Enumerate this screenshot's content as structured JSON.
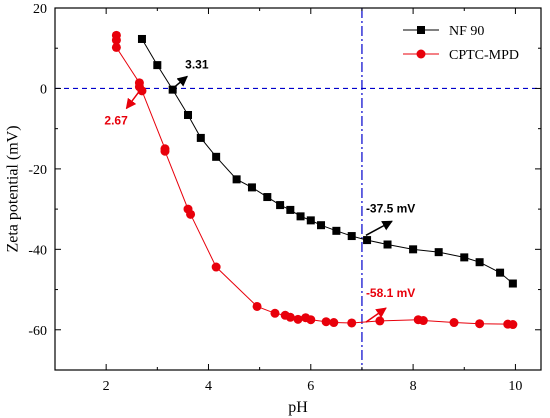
{
  "chart_data": {
    "type": "line",
    "xlabel": "pH",
    "ylabel": "Zeta potential (mV)",
    "xlim": [
      1,
      10.5
    ],
    "ylim": [
      -70,
      20
    ],
    "xticks": [
      2,
      4,
      6,
      8,
      10
    ],
    "yticks": [
      20,
      0,
      -20,
      -40,
      -60
    ],
    "grid": false,
    "legend_position": "top-right",
    "reference_lines": [
      {
        "axis": "y",
        "value": 0,
        "color": "#0000cc",
        "style": "dashed"
      },
      {
        "axis": "x",
        "value": 7,
        "color": "#0000cc",
        "style": "dash-dot"
      }
    ],
    "series": [
      {
        "name": "NF 90",
        "color": "#000000",
        "marker": "square",
        "x": [
          2.7,
          3.0,
          3.3,
          3.6,
          3.85,
          4.15,
          4.55,
          4.85,
          5.15,
          5.4,
          5.6,
          5.8,
          6.0,
          6.2,
          6.5,
          6.8,
          7.1,
          7.5,
          8.0,
          8.5,
          9.0,
          9.3,
          9.7,
          9.95
        ],
        "y": [
          12.3,
          5.8,
          -0.3,
          -6.6,
          -12.3,
          -17.0,
          -22.6,
          -24.6,
          -27.0,
          -29.0,
          -30.2,
          -31.8,
          -32.8,
          -34.0,
          -35.4,
          -36.7,
          -37.7,
          -38.8,
          -40.0,
          -40.7,
          -42.0,
          -43.2,
          -45.8,
          -48.5
        ]
      },
      {
        "name": "CPTC-MPD",
        "color": "#e8000b",
        "marker": "circle",
        "x": [
          2.2,
          2.2,
          2.2,
          2.65,
          2.65,
          2.7,
          3.15,
          3.15,
          3.6,
          3.65,
          4.15,
          4.95,
          5.3,
          5.5,
          5.6,
          5.75,
          5.9,
          6.0,
          6.3,
          6.45,
          6.8,
          7.35,
          8.1,
          8.2,
          8.8,
          9.3,
          9.85,
          9.95
        ],
        "y": [
          13.2,
          12.0,
          10.2,
          1.4,
          0.4,
          -0.6,
          -15.0,
          -15.6,
          -30.0,
          -31.3,
          -44.4,
          -54.2,
          -55.9,
          -56.4,
          -56.9,
          -57.4,
          -57.0,
          -57.5,
          -58.0,
          -58.2,
          -58.3,
          -57.8,
          -57.5,
          -57.7,
          -58.2,
          -58.5,
          -58.6,
          -58.7
        ]
      }
    ],
    "annotations": [
      {
        "text": "3.31",
        "color": "#000000",
        "x_point": 3.31,
        "y_point": 0
      },
      {
        "text": "2.67",
        "color": "#e8000b",
        "x_point": 2.67,
        "y_point": 0
      },
      {
        "text": "-37.5 mV",
        "color": "#000000",
        "x_point": 7.0,
        "y_point": -37.5
      },
      {
        "text": "-58.1 mV",
        "color": "#e8000b",
        "x_point": 7.0,
        "y_point": -58.1
      }
    ]
  }
}
